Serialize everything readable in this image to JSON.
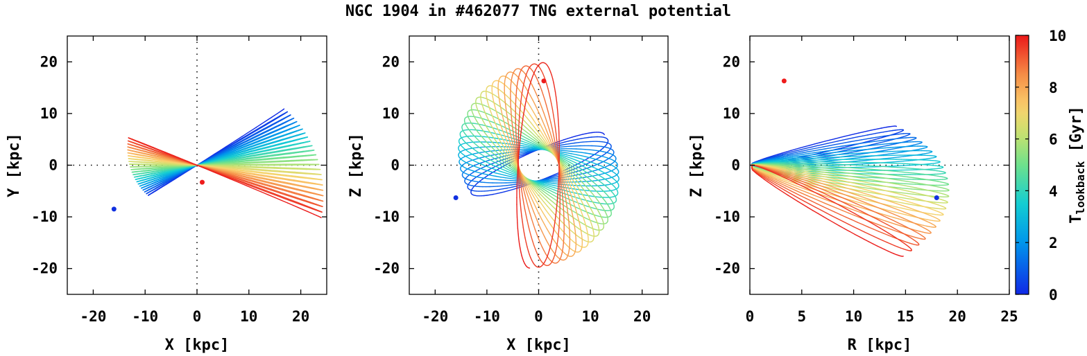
{
  "title": "NGC 1904 in #462077 TNG external potential",
  "chart_data": [
    {
      "type": "line",
      "panel": "left",
      "xlabel": "X [kpc]",
      "ylabel": "Y [kpc]",
      "xlim": [
        -25,
        25
      ],
      "ylim": [
        -25,
        25
      ],
      "xticks": [
        -20,
        -10,
        0,
        10,
        20
      ],
      "yticks": [
        -20,
        -10,
        0,
        10,
        20
      ],
      "zero_lines": true,
      "present_marker": [
        -16,
        -8.5
      ],
      "start_marker": [
        1,
        -3.3
      ]
    },
    {
      "type": "line",
      "panel": "middle",
      "xlabel": "X [kpc]",
      "ylabel": "Z [kpc]",
      "xlim": [
        -25,
        25
      ],
      "ylim": [
        -25,
        25
      ],
      "xticks": [
        -20,
        -10,
        0,
        10,
        20
      ],
      "yticks": [
        -20,
        -10,
        0,
        10,
        20
      ],
      "zero_lines": true,
      "present_marker": [
        -16,
        -6.3
      ],
      "start_marker": [
        1,
        16.3
      ]
    },
    {
      "type": "line",
      "panel": "right",
      "xlabel": "R [kpc]",
      "ylabel": "Z [kpc]",
      "xlim": [
        0,
        25
      ],
      "ylim": [
        -25,
        25
      ],
      "xticks": [
        0,
        5,
        10,
        15,
        20,
        25
      ],
      "yticks": [
        -20,
        -10,
        0,
        10,
        20
      ],
      "zero_lines": true,
      "present_marker": [
        18,
        -6.3
      ],
      "start_marker": [
        3.3,
        16.3
      ]
    }
  ],
  "colorbar": {
    "label_main": "T",
    "label_sub": "lookback",
    "label_unit": "[Gyr]",
    "range": [
      0,
      10
    ],
    "ticks": [
      0,
      2,
      4,
      6,
      8,
      10
    ],
    "colormap": "rainbow"
  },
  "colors": {
    "present_marker": "#1030e0",
    "start_marker": "#ee1c1c"
  }
}
